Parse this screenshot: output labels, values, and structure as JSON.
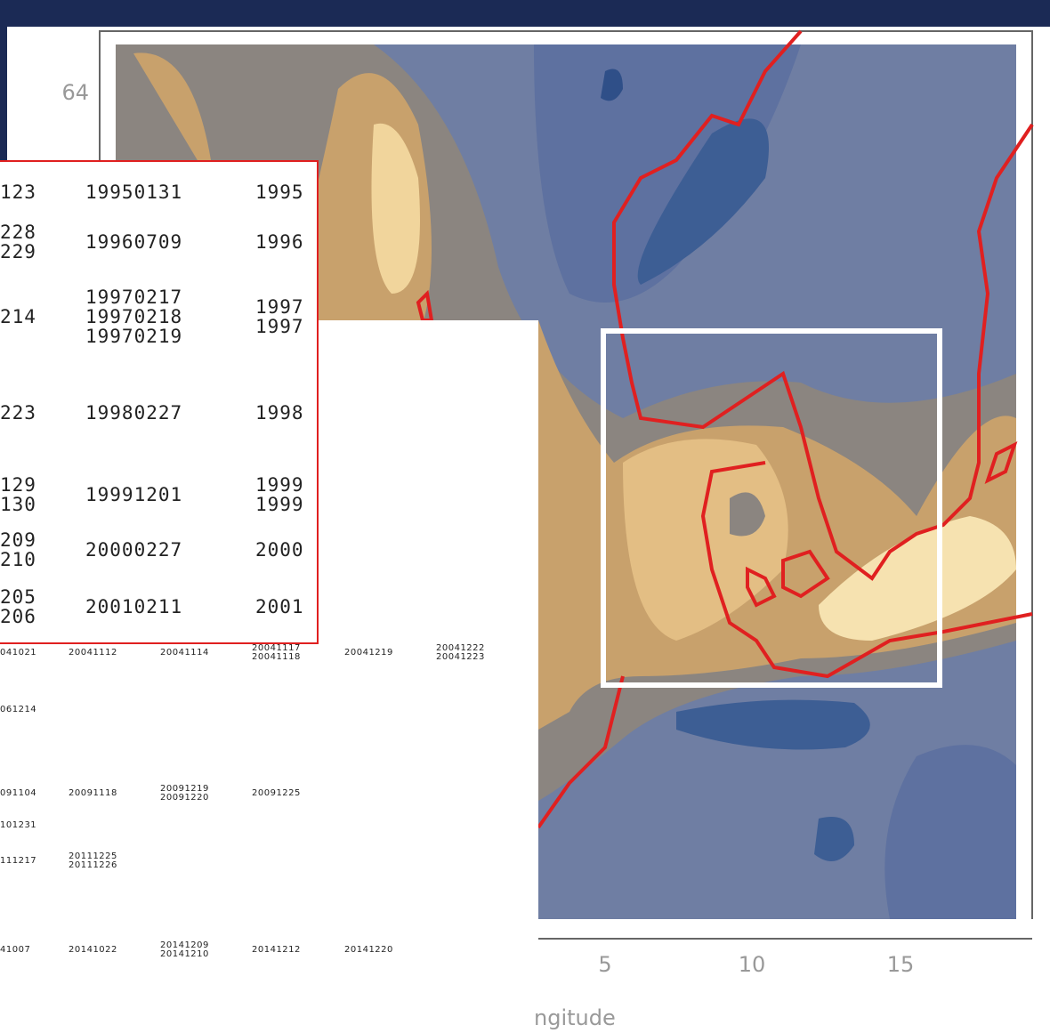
{
  "map": {
    "y_tick": "64",
    "x_ticks": [
      "5",
      "10",
      "15"
    ],
    "x_label": "ngitude"
  },
  "table_large": {
    "rows": [
      [
        [
          "123"
        ],
        [
          "19950131"
        ],
        [
          "1995"
        ]
      ],
      [
        [
          "228",
          "229"
        ],
        [
          "19960709"
        ],
        [
          "1996"
        ]
      ],
      [
        [
          "214"
        ],
        [
          "19970217",
          "19970218",
          "19970219"
        ],
        [
          "1997",
          "1997"
        ]
      ],
      [
        [
          "223"
        ],
        [
          "19980227"
        ],
        [
          "1998"
        ]
      ],
      [
        [
          "129",
          "130"
        ],
        [
          "19991201"
        ],
        [
          "1999",
          "1999"
        ]
      ],
      [
        [
          "209",
          "210"
        ],
        [
          "20000227"
        ],
        [
          "2000"
        ]
      ],
      [
        [
          "205",
          "206"
        ],
        [
          "20010211"
        ],
        [
          "2001"
        ]
      ]
    ]
  },
  "table_small": {
    "rows": [
      [
        [
          "041021"
        ],
        [
          "20041112"
        ],
        [
          "20041114"
        ],
        [
          "20041117",
          "20041118"
        ],
        [
          "20041219"
        ],
        [
          "20041222",
          "20041223"
        ]
      ],
      [
        [
          "061214"
        ]
      ],
      [
        [
          "091104"
        ],
        [
          "20091118"
        ],
        [
          "20091219",
          "20091220"
        ],
        [
          "20091225"
        ]
      ],
      [
        [
          "101231"
        ]
      ],
      [
        [
          "111217"
        ],
        [
          "20111225",
          "20111226"
        ]
      ],
      [
        [
          "41007"
        ],
        [
          "20141022"
        ],
        [
          "20141209",
          "20141210"
        ],
        [
          "20141212"
        ],
        [
          "20141220"
        ]
      ]
    ]
  }
}
